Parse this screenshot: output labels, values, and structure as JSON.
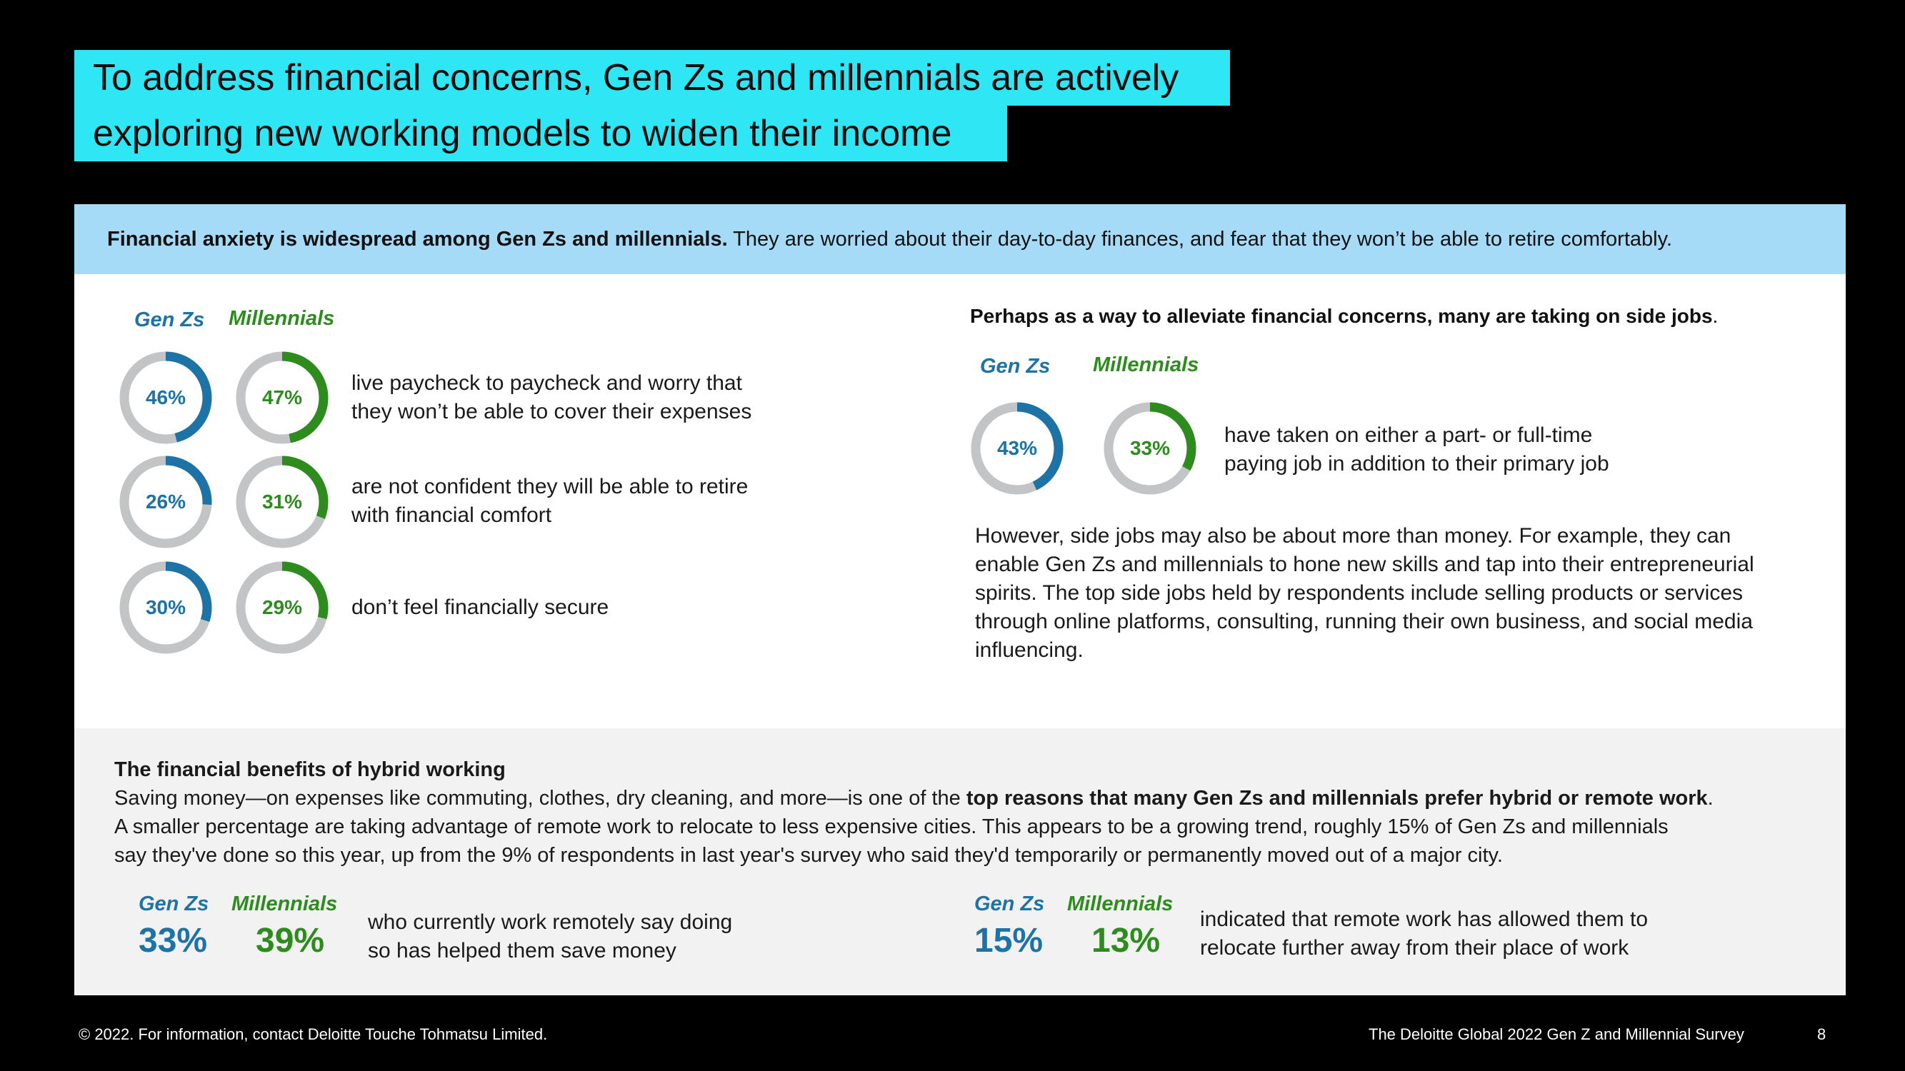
{
  "title": {
    "line1": "To address financial concerns, Gen Zs and millennials are actively",
    "line2": "exploring new working models to widen their income"
  },
  "banner": {
    "bold": "Financial anxiety is widespread among Gen Zs and millennials.",
    "rest": " They are worried about their day-to-day finances, and fear that they won’t be able to retire comfortably."
  },
  "labels": {
    "gen": "Gen Zs",
    "mil": "Millennials"
  },
  "left_stats": [
    {
      "gen": "46%",
      "mil": "47%",
      "gen_value": 46,
      "mil_value": 47,
      "line1": "live paycheck to paycheck and worry that",
      "line2": "they won’t be able to cover their expenses"
    },
    {
      "gen": "26%",
      "mil": "31%",
      "gen_value": 26,
      "mil_value": 31,
      "line1": "are not confident they will be able to retire",
      "line2": "with financial comfort"
    },
    {
      "gen": "30%",
      "mil": "29%",
      "gen_value": 30,
      "mil_value": 29,
      "line1": "don’t feel financially secure",
      "line2": ""
    }
  ],
  "side_jobs": {
    "heading": "Perhaps as a way to alleviate financial concerns, many are taking on side jobs",
    "heading_end": ".",
    "gen": "43%",
    "mil": "33%",
    "gen_value": 43,
    "mil_value": 33,
    "line1": "have taken on either a part- or full-time",
    "line2": "paying job in addition to their primary job",
    "paragraph": [
      "However, side jobs may also be about more than money. For example, they can",
      "enable Gen Zs and millennials to hone new skills and tap into their entrepreneurial",
      "spirits. The top side jobs held by respondents include selling products or services",
      "through online platforms, consulting, running their own business, and social media",
      "influencing."
    ]
  },
  "hybrid": {
    "heading": "The financial benefits of hybrid working",
    "line1_a": "Saving money—on expenses like commuting, clothes, dry cleaning, and more—is one of the ",
    "line1_b": "top reasons that many Gen Zs and millennials prefer hybrid or remote work",
    "line1_c": ".",
    "line2": "A smaller percentage are taking advantage of remote work to relocate to less expensive cities. This appears to be a growing trend, roughly 15% of Gen Zs and millennials",
    "line3": "say they've done so this year, up from the 9% of respondents in last year's survey who said they'd temporarily or permanently moved out of a major city.",
    "stat1": {
      "gen": "33%",
      "mil": "39%",
      "line1": "who currently work remotely say doing",
      "line2": "so has helped them save money"
    },
    "stat2": {
      "gen": "15%",
      "mil": "13%",
      "line1": "indicated that remote work has allowed them to",
      "line2": "relocate further away from their place of work"
    }
  },
  "footer": {
    "copyright": "© 2022. For information, contact Deloitte Touche Tohmatsu Limited.",
    "survey": "The Deloitte Global 2022 Gen Z and Millennial Survey",
    "page": "8"
  },
  "colors": {
    "gen": "#1d72a6",
    "mil": "#2e8b1e",
    "track": "#c2c4c6",
    "accent": "#2fe6f5",
    "banner": "#a6dbf8"
  }
}
